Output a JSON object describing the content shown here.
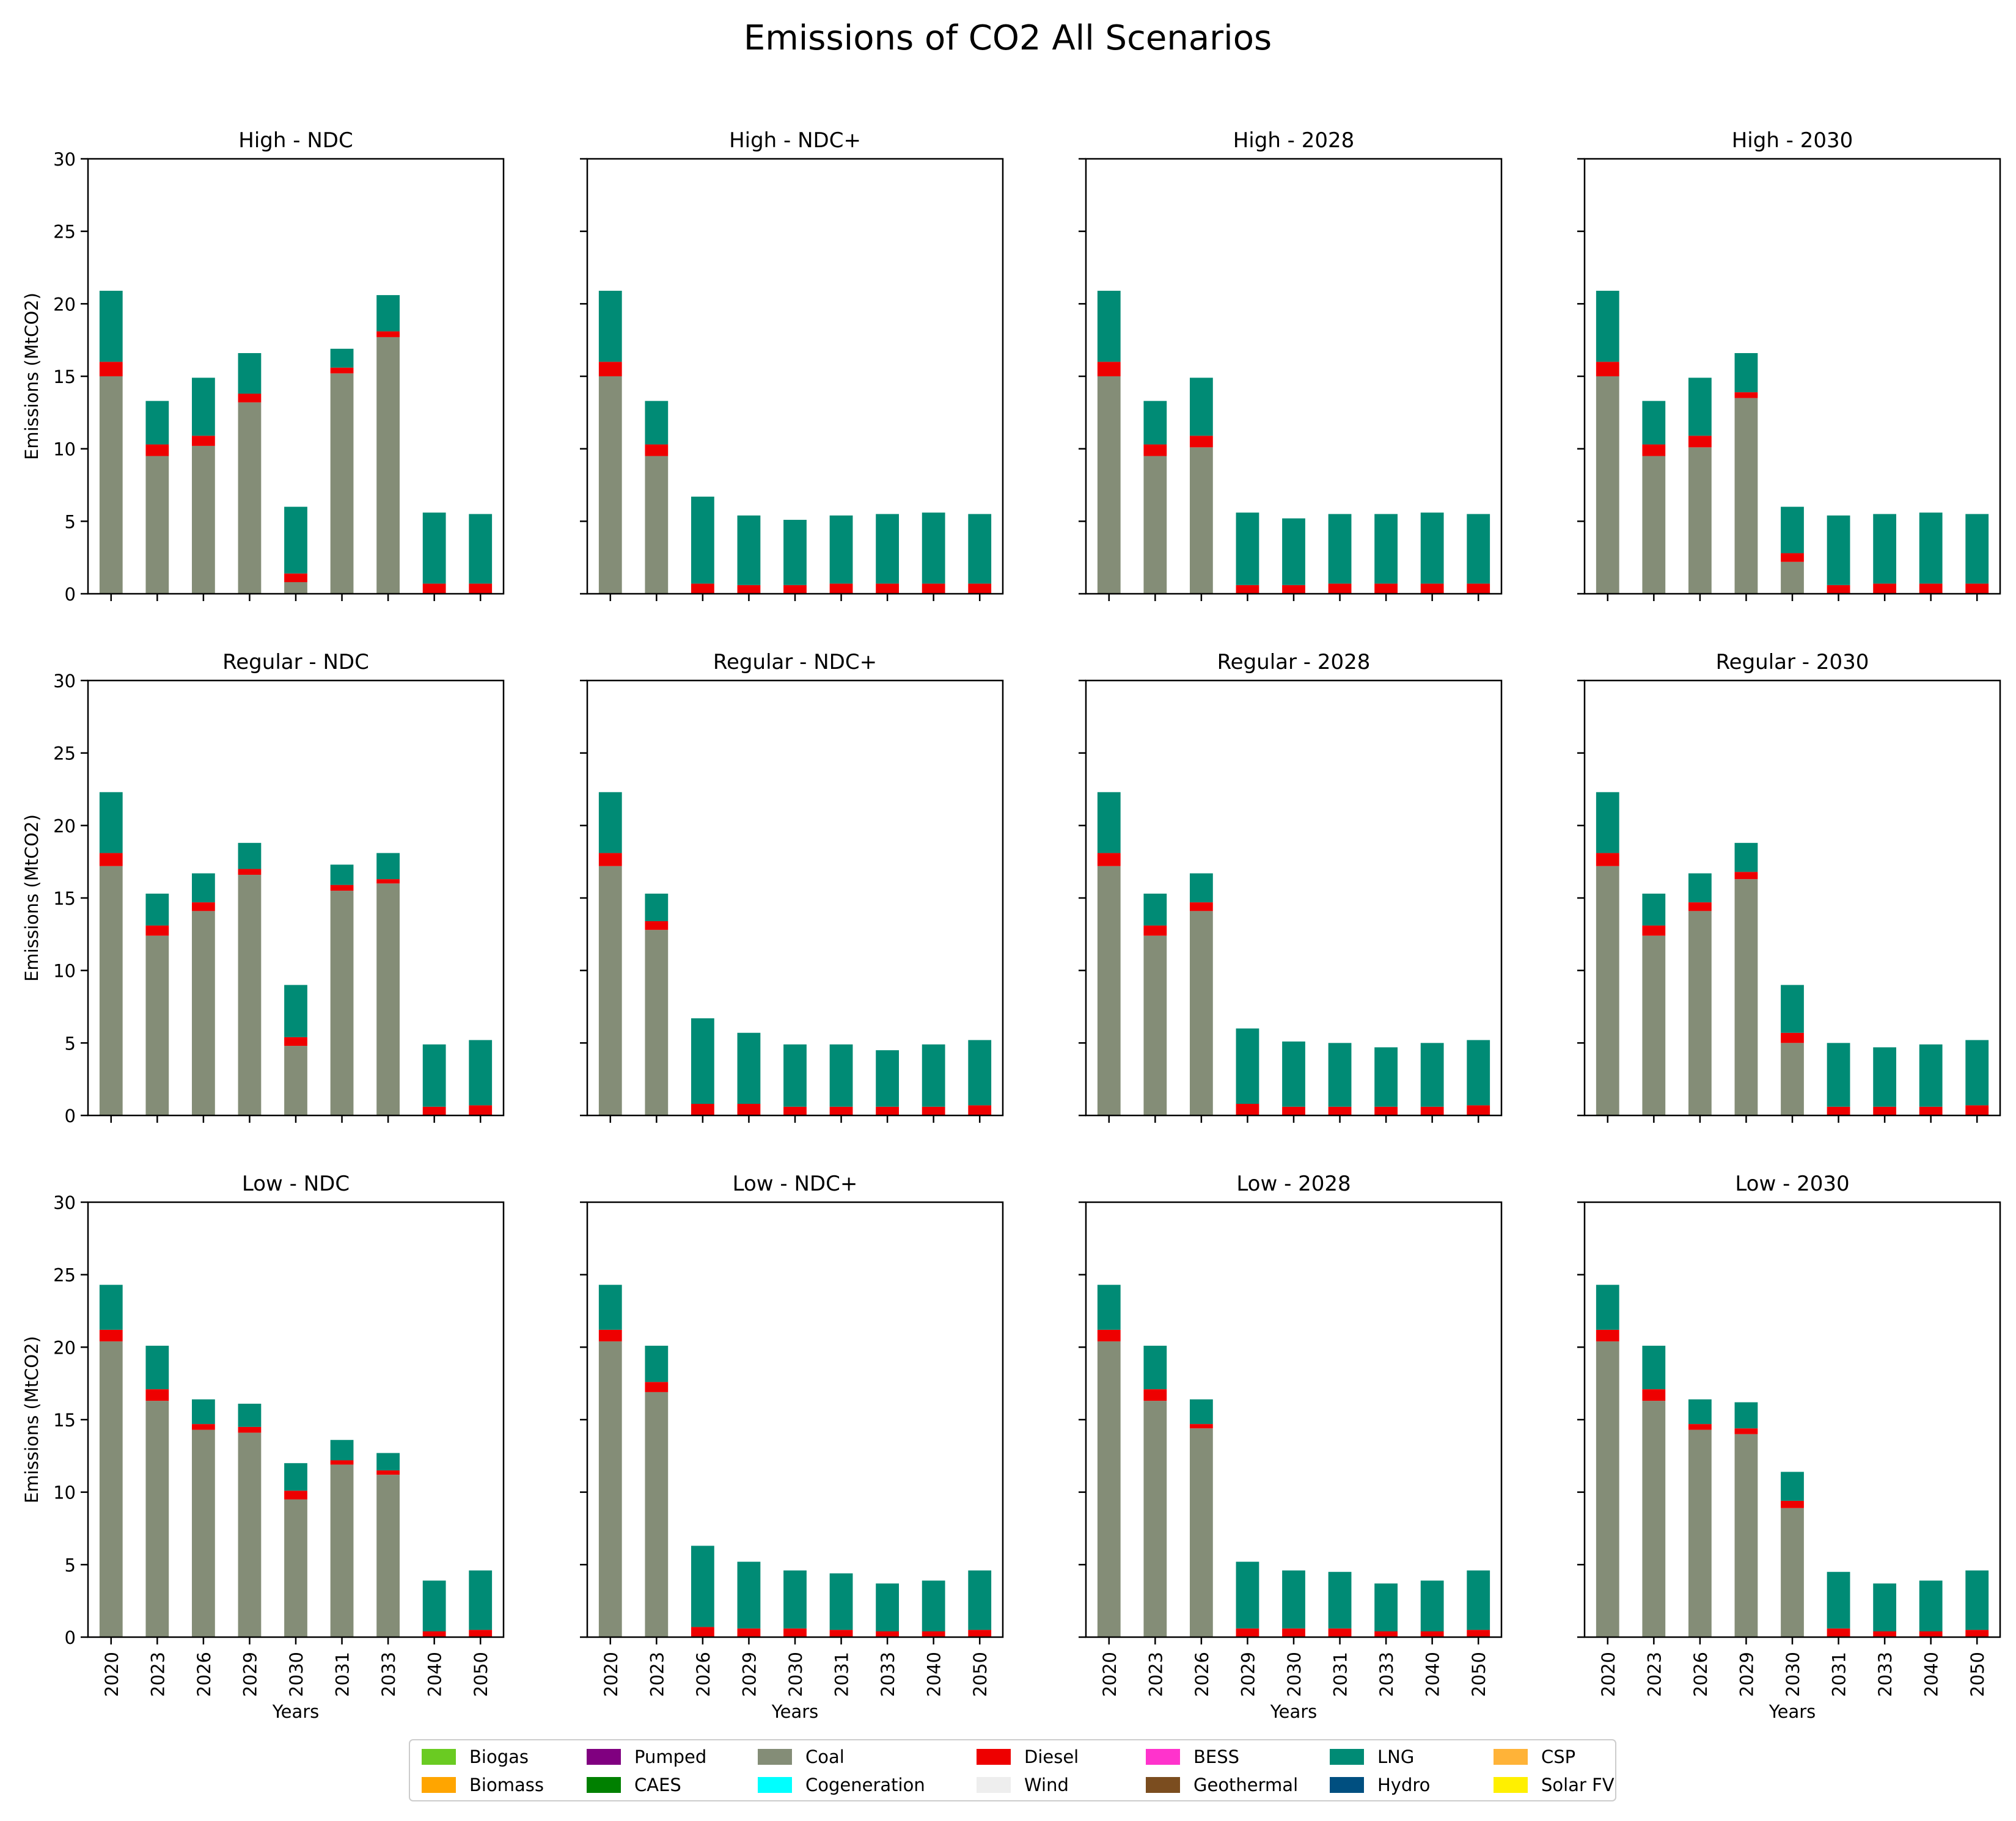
{
  "figure": {
    "title": "Emissions of CO2 All Scenarios"
  },
  "colors": {
    "Biogas": "#6ACB22",
    "Biomass": "#FFA500",
    "Pumped": "#800080",
    "CAES": "#008000",
    "Coal": "#848D77",
    "Cogeneration": "#00FFFF",
    "Diesel": "#EE0000",
    "Wind": "#EEEEEE",
    "BESS": "#FF33CC",
    "Geothermal": "#7B4D1F",
    "LNG": "#008B75",
    "Hydro": "#004F80",
    "CSP": "#FFB338",
    "Solar FV": "#FFF000"
  },
  "legend": {
    "entries": [
      "Biogas",
      "Biomass",
      "Pumped",
      "CAES",
      "Coal",
      "Cogeneration",
      "Diesel",
      "Wind",
      "BESS",
      "Geothermal",
      "LNG",
      "Hydro",
      "CSP",
      "Solar FV"
    ],
    "placement": "bottom-center"
  },
  "chart_data": {
    "type": "bar",
    "stacked": true,
    "title": "Emissions of CO2 All Scenarios",
    "xlabel": "Years",
    "ylabel": "Emissions (MtCO2)",
    "ylim": [
      0,
      30
    ],
    "yticks": [
      0,
      5,
      10,
      15,
      20,
      25,
      30
    ],
    "categories": [
      "2020",
      "2023",
      "2026",
      "2029",
      "2030",
      "2031",
      "2033",
      "2040",
      "2050"
    ],
    "stack_order": [
      "Coal",
      "Diesel",
      "LNG"
    ],
    "panels": [
      {
        "title": "High - NDC",
        "series": [
          {
            "name": "Coal",
            "values": [
              15.0,
              9.5,
              10.2,
              13.2,
              0.8,
              15.2,
              17.7,
              0,
              0
            ]
          },
          {
            "name": "Diesel",
            "values": [
              1.0,
              0.8,
              0.7,
              0.6,
              0.6,
              0.4,
              0.4,
              0.7,
              0.7
            ]
          },
          {
            "name": "LNG",
            "values": [
              4.9,
              3.0,
              4.0,
              2.8,
              4.6,
              1.3,
              2.5,
              4.9,
              4.8
            ]
          }
        ]
      },
      {
        "title": "High - NDC+",
        "series": [
          {
            "name": "Coal",
            "values": [
              15.0,
              9.5,
              0,
              0,
              0,
              0,
              0,
              0,
              0
            ]
          },
          {
            "name": "Diesel",
            "values": [
              1.0,
              0.8,
              0.7,
              0.6,
              0.6,
              0.7,
              0.7,
              0.7,
              0.7
            ]
          },
          {
            "name": "LNG",
            "values": [
              4.9,
              3.0,
              6.0,
              4.8,
              4.5,
              4.7,
              4.8,
              4.9,
              4.8
            ]
          }
        ]
      },
      {
        "title": "High - 2028",
        "series": [
          {
            "name": "Coal",
            "values": [
              15.0,
              9.5,
              10.1,
              0,
              0,
              0,
              0,
              0,
              0
            ]
          },
          {
            "name": "Diesel",
            "values": [
              1.0,
              0.8,
              0.8,
              0.6,
              0.6,
              0.7,
              0.7,
              0.7,
              0.7
            ]
          },
          {
            "name": "LNG",
            "values": [
              4.9,
              3.0,
              4.0,
              5.0,
              4.6,
              4.8,
              4.8,
              4.9,
              4.8
            ]
          }
        ]
      },
      {
        "title": "High - 2030",
        "series": [
          {
            "name": "Coal",
            "values": [
              15.0,
              9.5,
              10.1,
              13.5,
              2.2,
              0,
              0,
              0,
              0
            ]
          },
          {
            "name": "Diesel",
            "values": [
              1.0,
              0.8,
              0.8,
              0.4,
              0.6,
              0.6,
              0.7,
              0.7,
              0.7
            ]
          },
          {
            "name": "LNG",
            "values": [
              4.9,
              3.0,
              4.0,
              2.7,
              3.2,
              4.8,
              4.8,
              4.9,
              4.8
            ]
          }
        ]
      },
      {
        "title": "Regular - NDC",
        "series": [
          {
            "name": "Coal",
            "values": [
              17.2,
              12.4,
              14.1,
              16.6,
              4.8,
              15.5,
              16.0,
              0,
              0
            ]
          },
          {
            "name": "Diesel",
            "values": [
              0.9,
              0.7,
              0.6,
              0.4,
              0.6,
              0.4,
              0.3,
              0.6,
              0.7
            ]
          },
          {
            "name": "LNG",
            "values": [
              4.2,
              2.2,
              2.0,
              1.8,
              3.6,
              1.4,
              1.8,
              4.3,
              4.5
            ]
          }
        ]
      },
      {
        "title": "Regular - NDC+",
        "series": [
          {
            "name": "Coal",
            "values": [
              17.2,
              12.8,
              0,
              0,
              0,
              0,
              0,
              0,
              0
            ]
          },
          {
            "name": "Diesel",
            "values": [
              0.9,
              0.6,
              0.8,
              0.8,
              0.6,
              0.6,
              0.6,
              0.6,
              0.7
            ]
          },
          {
            "name": "LNG",
            "values": [
              4.2,
              1.9,
              5.9,
              4.9,
              4.3,
              4.3,
              3.9,
              4.3,
              4.5
            ]
          }
        ]
      },
      {
        "title": "Regular - 2028",
        "series": [
          {
            "name": "Coal",
            "values": [
              17.2,
              12.4,
              14.1,
              0,
              0,
              0,
              0,
              0,
              0
            ]
          },
          {
            "name": "Diesel",
            "values": [
              0.9,
              0.7,
              0.6,
              0.8,
              0.6,
              0.6,
              0.6,
              0.6,
              0.7
            ]
          },
          {
            "name": "LNG",
            "values": [
              4.2,
              2.2,
              2.0,
              5.2,
              4.5,
              4.4,
              4.1,
              4.4,
              4.5
            ]
          }
        ]
      },
      {
        "title": "Regular - 2030",
        "series": [
          {
            "name": "Coal",
            "values": [
              17.2,
              12.4,
              14.1,
              16.3,
              5.0,
              0,
              0,
              0,
              0
            ]
          },
          {
            "name": "Diesel",
            "values": [
              0.9,
              0.7,
              0.6,
              0.5,
              0.7,
              0.6,
              0.6,
              0.6,
              0.7
            ]
          },
          {
            "name": "LNG",
            "values": [
              4.2,
              2.2,
              2.0,
              2.0,
              3.3,
              4.4,
              4.1,
              4.3,
              4.5
            ]
          }
        ]
      },
      {
        "title": "Low - NDC",
        "series": [
          {
            "name": "Coal",
            "values": [
              20.4,
              16.3,
              14.3,
              14.1,
              9.5,
              11.9,
              11.2,
              0,
              0
            ]
          },
          {
            "name": "Diesel",
            "values": [
              0.8,
              0.8,
              0.4,
              0.4,
              0.6,
              0.3,
              0.3,
              0.4,
              0.5
            ]
          },
          {
            "name": "LNG",
            "values": [
              3.1,
              3.0,
              1.7,
              1.6,
              1.9,
              1.4,
              1.2,
              3.5,
              4.1
            ]
          }
        ]
      },
      {
        "title": "Low - NDC+",
        "series": [
          {
            "name": "Coal",
            "values": [
              20.4,
              16.9,
              0,
              0,
              0,
              0,
              0,
              0,
              0
            ]
          },
          {
            "name": "Diesel",
            "values": [
              0.8,
              0.7,
              0.7,
              0.6,
              0.6,
              0.5,
              0.4,
              0.4,
              0.5
            ]
          },
          {
            "name": "LNG",
            "values": [
              3.1,
              2.5,
              5.6,
              4.6,
              4.0,
              3.9,
              3.3,
              3.5,
              4.1
            ]
          }
        ]
      },
      {
        "title": "Low - 2028",
        "series": [
          {
            "name": "Coal",
            "values": [
              20.4,
              16.3,
              14.4,
              0,
              0,
              0,
              0,
              0,
              0
            ]
          },
          {
            "name": "Diesel",
            "values": [
              0.8,
              0.8,
              0.3,
              0.6,
              0.6,
              0.6,
              0.4,
              0.4,
              0.5
            ]
          },
          {
            "name": "LNG",
            "values": [
              3.1,
              3.0,
              1.7,
              4.6,
              4.0,
              3.9,
              3.3,
              3.5,
              4.1
            ]
          }
        ]
      },
      {
        "title": "Low - 2030",
        "series": [
          {
            "name": "Coal",
            "values": [
              20.4,
              16.3,
              14.3,
              14.0,
              8.9,
              0,
              0,
              0,
              0
            ]
          },
          {
            "name": "Diesel",
            "values": [
              0.8,
              0.8,
              0.4,
              0.4,
              0.5,
              0.6,
              0.4,
              0.4,
              0.5
            ]
          },
          {
            "name": "LNG",
            "values": [
              3.1,
              3.0,
              1.7,
              1.8,
              2.0,
              3.9,
              3.3,
              3.5,
              4.1
            ]
          }
        ]
      }
    ]
  }
}
